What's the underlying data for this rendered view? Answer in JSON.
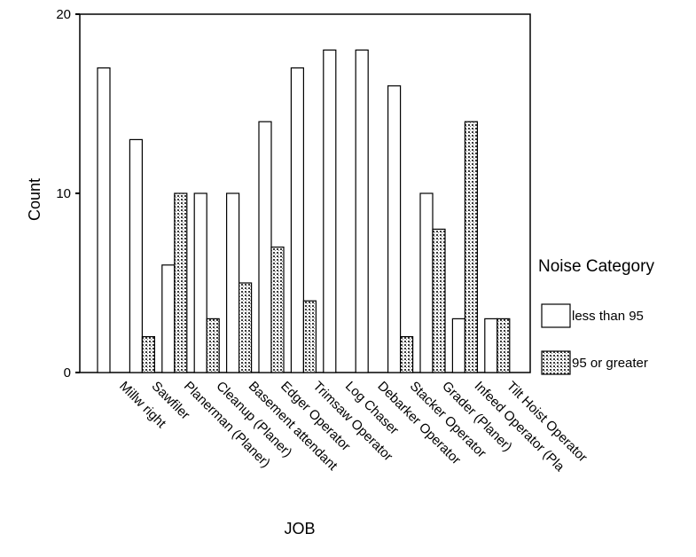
{
  "chart_data": {
    "type": "bar",
    "title": "",
    "xlabel": "JOB",
    "ylabel": "Count",
    "ylim": [
      0,
      20
    ],
    "yticks": [
      0,
      10,
      20
    ],
    "grid": false,
    "legend_title": "Noise Category",
    "legend_position": "right",
    "categories": [
      "Millw right",
      "Sawfiler",
      "Planerman (Planer)",
      "Cleanup (Planer)",
      "Basement attendant",
      "Edger Operator",
      "Trimsaw Operator",
      "Log Chaser",
      "Debarker Operator",
      "Stacker Operator",
      "Grader (Planer)",
      "Infeed Operator (Pla",
      "Tilt Hoist Operator"
    ],
    "series": [
      {
        "name": "less than 95",
        "values": [
          17,
          13,
          6,
          10,
          10,
          14,
          17,
          18,
          18,
          16,
          10,
          3,
          3
        ],
        "pattern": "white"
      },
      {
        "name": "95 or greater",
        "values": [
          0,
          2,
          10,
          3,
          5,
          7,
          4,
          0,
          0,
          2,
          8,
          14,
          3
        ],
        "pattern": "stipple"
      }
    ]
  }
}
